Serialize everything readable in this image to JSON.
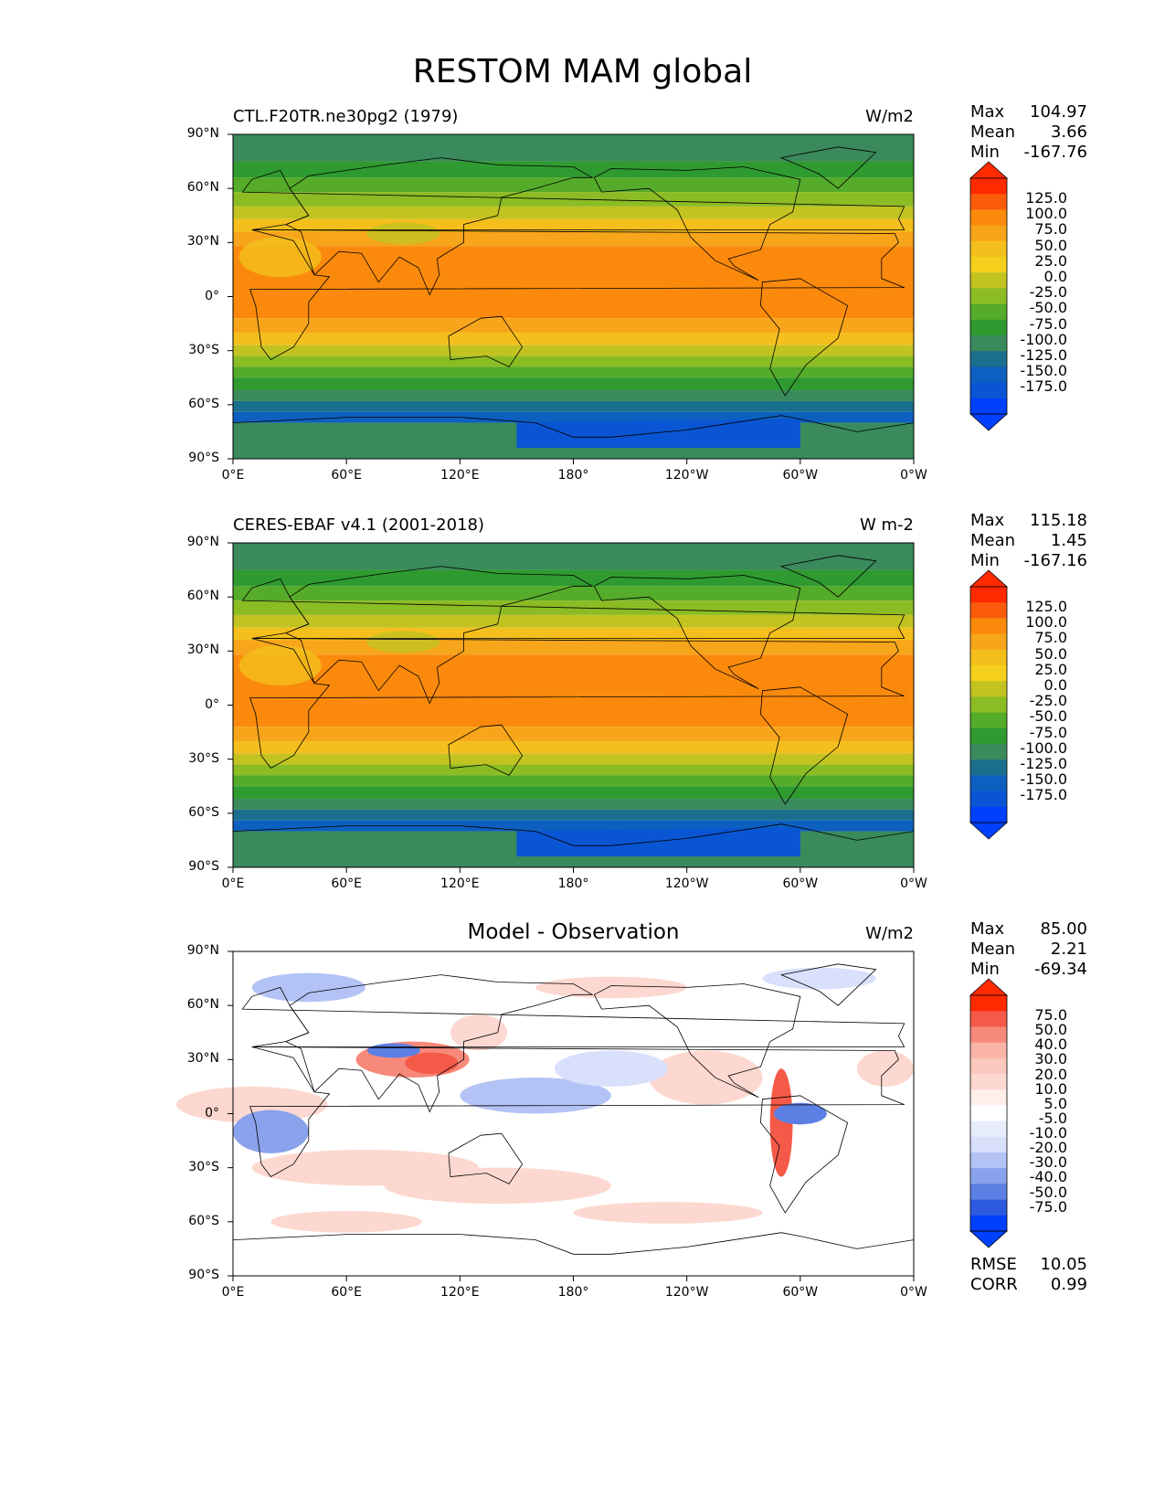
{
  "figure": {
    "title": "RESTOM MAM global"
  },
  "panels": [
    {
      "left_title": "CTL.F20TR.ne30pg2 (1979)",
      "center_title": "",
      "units": "W/m2",
      "stats": [
        {
          "label": "Max",
          "value": "104.97"
        },
        {
          "label": "Mean",
          "value": "3.66"
        },
        {
          "label": "Min",
          "value": "-167.76"
        }
      ],
      "extra_stats": [],
      "colorbar_labels": [
        "125.0",
        "100.0",
        "75.0",
        "50.0",
        "25.0",
        "0.0",
        "-25.0",
        "-50.0",
        "-75.0",
        "-100.0",
        "-125.0",
        "-150.0",
        "-175.0"
      ]
    },
    {
      "left_title": "CERES-EBAF v4.1 (2001-2018)",
      "center_title": "",
      "units": "W m-2",
      "stats": [
        {
          "label": "Max",
          "value": "115.18"
        },
        {
          "label": "Mean",
          "value": "1.45"
        },
        {
          "label": "Min",
          "value": "-167.16"
        }
      ],
      "extra_stats": [],
      "colorbar_labels": [
        "125.0",
        "100.0",
        "75.0",
        "50.0",
        "25.0",
        "0.0",
        "-25.0",
        "-50.0",
        "-75.0",
        "-100.0",
        "-125.0",
        "-150.0",
        "-175.0"
      ]
    },
    {
      "left_title": "",
      "center_title": "Model - Observation",
      "units": "W/m2",
      "stats": [
        {
          "label": "Max",
          "value": "85.00"
        },
        {
          "label": "Mean",
          "value": "2.21"
        },
        {
          "label": "Min",
          "value": "-69.34"
        }
      ],
      "extra_stats": [
        {
          "label": "RMSE",
          "value": "10.05"
        },
        {
          "label": "CORR",
          "value": "0.99"
        }
      ],
      "colorbar_labels": [
        "75.0",
        "50.0",
        "40.0",
        "30.0",
        "20.0",
        "10.0",
        "5.0",
        "-5.0",
        "-10.0",
        "-20.0",
        "-30.0",
        "-40.0",
        "-50.0",
        "-75.0"
      ]
    }
  ],
  "axes": {
    "lat_labels": [
      "90°N",
      "60°N",
      "30°N",
      "0°",
      "30°S",
      "60°S",
      "90°S"
    ],
    "lon_labels": [
      "0°E",
      "60°E",
      "120°E",
      "180°",
      "120°W",
      "60°W",
      "0°W"
    ]
  },
  "colors": {
    "field_bands": [
      "#3a8a5c",
      "#2f9a30",
      "#55ab2a",
      "#8bbc24",
      "#c2c320",
      "#f4bf1c",
      "#f7a51a",
      "#fb8a0c"
    ],
    "polar_south": [
      "#1a6f8e",
      "#0d5fc0",
      "#0a55d4"
    ],
    "diff_pos": [
      "#ff2a00",
      "#f55a48",
      "#f7897a",
      "#fab4a8",
      "#fdd8d0"
    ],
    "diff_neg": [
      "#d8e0fb",
      "#b3c3f5",
      "#8aa2ec",
      "#5c7fe3",
      "#2e5ae0"
    ]
  }
}
